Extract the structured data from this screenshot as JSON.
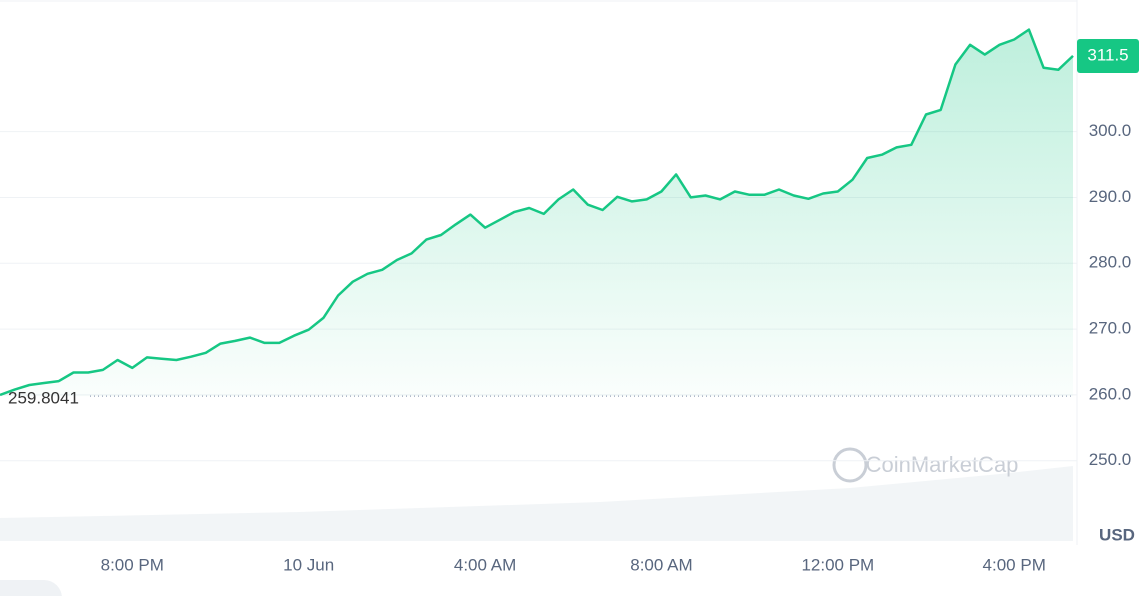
{
  "chart_data": {
    "type": "line",
    "color": "#16c784",
    "values": [
      260.0,
      260.8,
      261.5,
      261.8,
      262.1,
      263.4,
      263.4,
      263.8,
      265.3,
      264.1,
      265.7,
      265.5,
      265.3,
      265.8,
      266.4,
      267.8,
      268.2,
      268.7,
      267.9,
      267.9,
      269.0,
      269.9,
      271.7,
      275.1,
      277.2,
      278.4,
      279.0,
      280.5,
      281.5,
      283.6,
      284.3,
      285.9,
      287.4,
      285.4,
      286.6,
      287.8,
      288.4,
      287.5,
      289.7,
      291.2,
      288.9,
      288.1,
      290.1,
      289.4,
      289.7,
      290.9,
      293.5,
      290.0,
      290.3,
      289.7,
      290.9,
      290.4,
      290.4,
      291.2,
      290.3,
      289.8,
      290.6,
      290.9,
      292.7,
      296.0,
      296.5,
      297.6,
      298.0,
      302.6,
      303.3,
      310.2,
      313.2,
      311.7,
      313.2,
      314.0,
      315.5,
      309.7,
      309.4,
      311.5
    ],
    "xlim": [
      0,
      73
    ],
    "xticks": [
      {
        "value": 9,
        "label": "8:00 PM"
      },
      {
        "value": 21,
        "label": "10 Jun"
      },
      {
        "value": 33,
        "label": "4:00 AM"
      },
      {
        "value": 45,
        "label": "8:00 AM"
      },
      {
        "value": 57,
        "label": "12:00 PM"
      },
      {
        "value": 69,
        "label": "4:00 PM"
      }
    ],
    "ylim": [
      237.8,
      320
    ],
    "yticks": [
      {
        "value": 250,
        "label": "250.0"
      },
      {
        "value": 260,
        "label": "260.0"
      },
      {
        "value": 270,
        "label": "270.0"
      },
      {
        "value": 280,
        "label": "280.0"
      },
      {
        "value": 290,
        "label": "290.0"
      },
      {
        "value": 300,
        "label": "300.0"
      }
    ],
    "grid": true,
    "current_price": 311.5,
    "reference_value": 259.8041,
    "y_unit": "USD",
    "watermark": "CoinMarketCap"
  }
}
